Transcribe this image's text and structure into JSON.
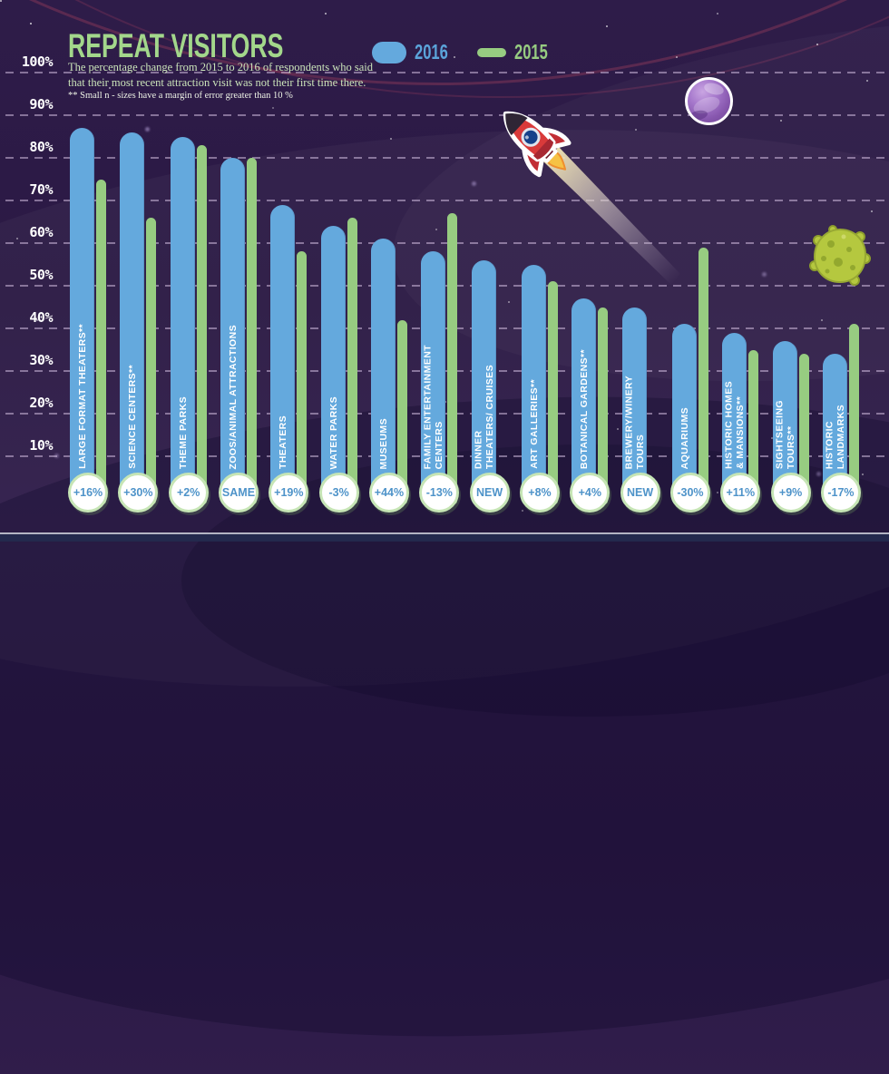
{
  "header": {
    "title": "REPEAT VISITORS",
    "subtitle": "The percentage change from 2015 to 2016 of respondents who said that their most recent attraction visit was not their first time there.",
    "footnote": "** Small n - sizes have a margin of error greater than 10 %"
  },
  "legend": {
    "items": [
      {
        "label": "2016",
        "color": "#64a9dd",
        "shape": "rounded-rect"
      },
      {
        "label": "2015",
        "color": "#97cc81",
        "shape": "pill"
      }
    ]
  },
  "colors": {
    "background": "#2b1944",
    "bar_2016": "#64a9dd",
    "bar_2015": "#97cc81",
    "title_green": "#a3d78b",
    "badge_text_blue": "#4e93c9",
    "badge_border_green": "#c6e5b5",
    "grid_dash": "#ddc8ea",
    "axis_text": "#ffffff",
    "bottom_strip": "#23294d"
  },
  "decorations": [
    "rocket-illustration",
    "purple-planet",
    "green-asteroid",
    "stars"
  ],
  "chart_data": {
    "type": "bar",
    "title": "REPEAT VISITORS",
    "subtitle": "The percentage change from 2015 to 2016 of respondents who said that their most recent attraction visit was not their first time there.",
    "footnote": "** Small n - sizes have a margin of error greater than 10 %",
    "unit": "percent of repeat visitors",
    "ylim": [
      0,
      100
    ],
    "yticks": [
      "10%",
      "20%",
      "30%",
      "40%",
      "50%",
      "60%",
      "70%",
      "80%",
      "90%",
      "100%"
    ],
    "grid": true,
    "legend_position": "top-center",
    "categories": [
      "LARGE FORMAT THEATERS**",
      "SCIENCE CENTERS**",
      "THEME PARKS",
      "ZOOS/ANIMAL ATTRACTIONS",
      "THEATERS",
      "WATER PARKS",
      "MUSEUMS",
      "FAMILY ENTERTAINMENT\nCENTERS",
      "DINNER\nTHEATERS/ CRUISES",
      "ART GALLERIES**",
      "BOTANICAL GARDENS**",
      "BREWERY/WINERY\nTOURS",
      "AQUARIUMS",
      "HISTORIC HOMES\n& MANSIONS**",
      "SIGHTSEEING\nTOURS**",
      "HISTORIC\nLANDMARKS"
    ],
    "series": [
      {
        "name": "2016",
        "color": "#64a9dd",
        "values": [
          87,
          86,
          85,
          80,
          69,
          64,
          61,
          58,
          56,
          55,
          47,
          45,
          41,
          39,
          37,
          34
        ]
      },
      {
        "name": "2015",
        "color": "#97cc81",
        "values": [
          75,
          66,
          83,
          80,
          58,
          66,
          42,
          67,
          null,
          51,
          45,
          null,
          59,
          35,
          34,
          41
        ]
      }
    ],
    "change_badges": [
      "+16%",
      "+30%",
      "+2%",
      "SAME",
      "+19%",
      "-3%",
      "+44%",
      "-13%",
      "NEW",
      "+8%",
      "+4%",
      "NEW",
      "-30%",
      "+11%",
      "+9%",
      "-17%"
    ]
  }
}
